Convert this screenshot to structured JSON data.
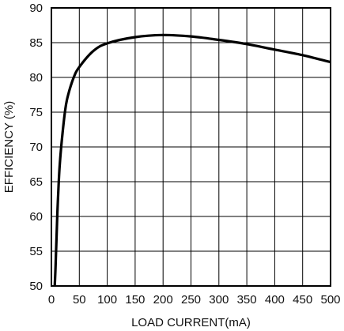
{
  "chart_data": {
    "type": "line",
    "xlabel": "LOAD CURRENT(mA)",
    "ylabel": "EFFICIENCY (%)",
    "xlim": [
      0,
      500
    ],
    "ylim": [
      50,
      90
    ],
    "xticks": [
      0,
      50,
      100,
      150,
      200,
      250,
      300,
      350,
      400,
      450,
      500
    ],
    "yticks": [
      50,
      55,
      60,
      65,
      70,
      75,
      80,
      85,
      90
    ],
    "grid": true,
    "colors": {
      "line": "#000000",
      "grid": "#000000",
      "background": "#ffffff"
    },
    "series": [
      {
        "x": [
          6,
          8,
          10,
          12,
          15,
          20,
          25,
          30,
          40,
          50,
          75,
          100,
          150,
          200,
          250,
          300,
          350,
          400,
          450,
          500
        ],
        "values": [
          50,
          54,
          59,
          63,
          67.5,
          72,
          75.5,
          77.5,
          80,
          81.5,
          83.8,
          84.9,
          85.8,
          86.1,
          85.9,
          85.4,
          84.8,
          84.0,
          83.2,
          82.2
        ]
      }
    ]
  }
}
